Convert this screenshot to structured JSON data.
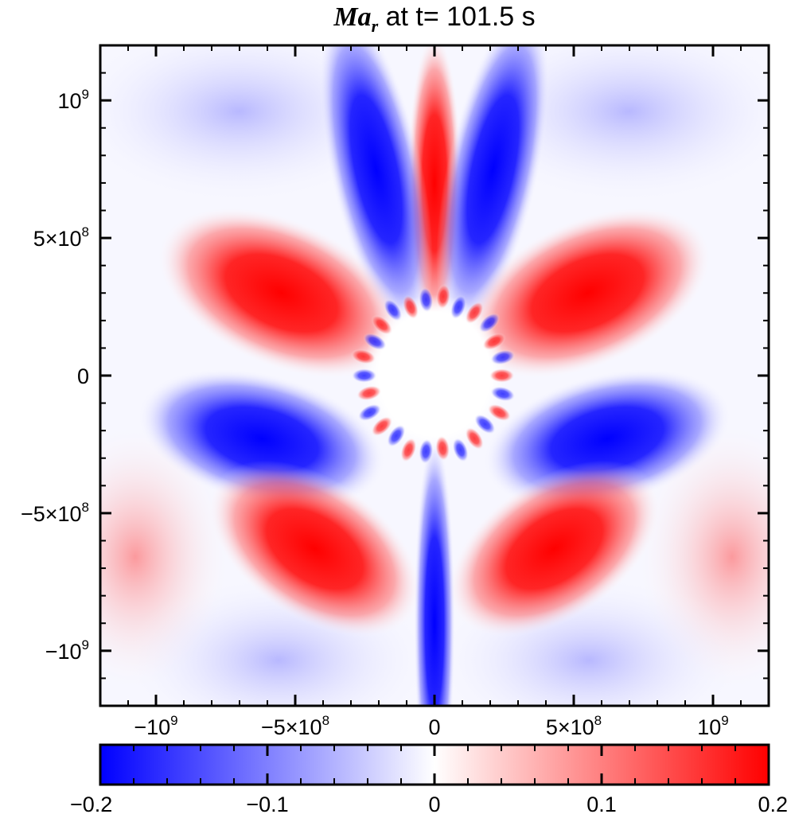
{
  "chart_data": {
    "type": "heatmap",
    "title": {
      "symbol": "Ma",
      "subscript": "r",
      "text": "at t= 101.5 s"
    },
    "xlabel": "",
    "ylabel": "",
    "xlim": [
      -1200000000.0,
      1200000000.0
    ],
    "ylim": [
      -1200000000.0,
      1200000000.0
    ],
    "x_ticks": [
      {
        "value": -1000000000.0,
        "base": "−10",
        "exp": "9"
      },
      {
        "value": -500000000.0,
        "base": "−5×10",
        "exp": "8"
      },
      {
        "value": 0,
        "base": "0",
        "exp": ""
      },
      {
        "value": 500000000.0,
        "base": "5×10",
        "exp": "8"
      },
      {
        "value": 1000000000.0,
        "base": "10",
        "exp": "9"
      }
    ],
    "y_ticks": [
      {
        "value": 1000000000.0,
        "base": "10",
        "exp": "9"
      },
      {
        "value": 500000000.0,
        "base": "5×10",
        "exp": "8"
      },
      {
        "value": 0,
        "base": "0",
        "exp": ""
      },
      {
        "value": -500000000.0,
        "base": "−5×10",
        "exp": "8"
      },
      {
        "value": -1000000000.0,
        "base": "−10",
        "exp": "9"
      }
    ],
    "colorbar": {
      "range": [
        -0.2,
        0.2
      ],
      "colormap": [
        "#0000ff",
        "#ffffff",
        "#ff0000"
      ],
      "ticks": [
        {
          "value": -0.2,
          "label": "−0.2"
        },
        {
          "value": -0.1,
          "label": "−0.1"
        },
        {
          "value": 0,
          "label": "0"
        },
        {
          "value": 0.1,
          "label": "0.1"
        },
        {
          "value": 0.2,
          "label": "0.2"
        }
      ]
    },
    "features": [
      {
        "name": "north-polar-jet",
        "sign": "positive",
        "x": 0,
        "y": 700000000.0
      },
      {
        "name": "north-flank-left",
        "sign": "negative",
        "x": -210000000.0,
        "y": 750000000.0
      },
      {
        "name": "north-flank-right",
        "sign": "negative",
        "x": 210000000.0,
        "y": 750000000.0
      },
      {
        "name": "upper-left-lobe",
        "sign": "positive",
        "x": -550000000.0,
        "y": 300000000.0
      },
      {
        "name": "upper-right-lobe",
        "sign": "positive",
        "x": 550000000.0,
        "y": 300000000.0
      },
      {
        "name": "mid-left-lobe",
        "sign": "negative",
        "x": -620000000.0,
        "y": -230000000.0
      },
      {
        "name": "mid-right-lobe",
        "sign": "negative",
        "x": 620000000.0,
        "y": -230000000.0
      },
      {
        "name": "lower-left-lobe",
        "sign": "positive",
        "x": -430000000.0,
        "y": -630000000.0
      },
      {
        "name": "lower-right-lobe",
        "sign": "positive",
        "x": 430000000.0,
        "y": -630000000.0
      },
      {
        "name": "south-polar-jet",
        "sign": "negative",
        "x": 0,
        "y": -900000000.0
      },
      {
        "name": "central-core",
        "sign": "zero",
        "x": 0,
        "y": 0
      }
    ]
  }
}
